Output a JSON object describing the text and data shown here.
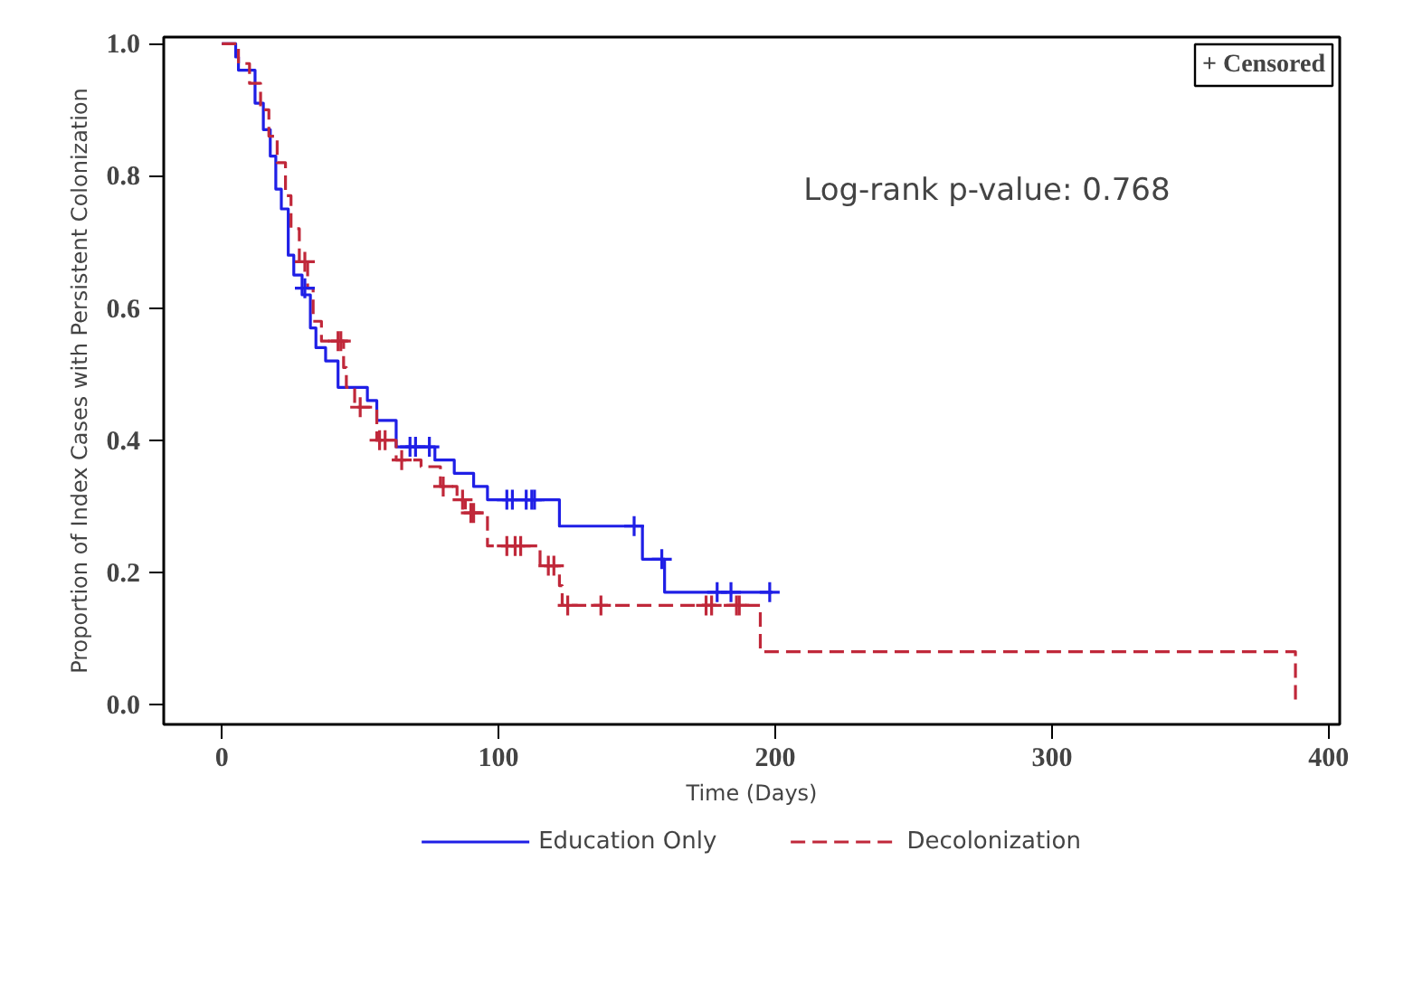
{
  "chart_data": {
    "type": "step",
    "xlabel": "Time (Days)",
    "ylabel": "Proportion of Index Cases with Persistent Colonization",
    "xlim": [
      -21,
      404
    ],
    "ylim": [
      -0.03,
      1.01
    ],
    "xticks": [
      0,
      100,
      200,
      300,
      400
    ],
    "yticks": [
      {
        "value": 0,
        "label": "0.0"
      },
      0.2,
      0.4,
      0.6,
      0.8,
      {
        "value": 1,
        "label": "1.0"
      }
    ],
    "grid": false,
    "legend": "bottom",
    "annotations": [
      "+ Censored",
      "Log-rank p-value: 0.768"
    ],
    "series": [
      {
        "name": "Education Only",
        "color": "#1f1fe6",
        "line_style": "solid",
        "x": [
          0,
          5,
          6,
          12,
          15,
          17.5,
          19.5,
          21.5,
          24,
          26,
          29,
          32,
          34,
          37.5,
          42,
          52.6,
          56,
          63,
          77,
          84,
          91,
          96,
          122,
          152,
          160,
          199
        ],
        "values": [
          1.0,
          0.98,
          0.96,
          0.91,
          0.87,
          0.83,
          0.78,
          0.75,
          0.68,
          0.65,
          0.62,
          0.57,
          0.54,
          0.52,
          0.48,
          0.46,
          0.43,
          0.39,
          0.37,
          0.35,
          0.33,
          0.31,
          0.27,
          0.22,
          0.17,
          0.17
        ]
      },
      {
        "name": "Decolonization",
        "color": "#c0283a",
        "line_style": "dashed",
        "x": [
          0,
          6,
          10,
          14,
          17,
          20,
          23,
          25,
          28,
          31,
          33,
          36,
          44,
          45,
          48,
          56,
          63,
          72,
          79,
          85,
          88,
          96,
          115,
          122,
          123,
          194.6,
          388
        ],
        "values": [
          1.0,
          0.97,
          0.94,
          0.9,
          0.86,
          0.82,
          0.77,
          0.72,
          0.67,
          0.63,
          0.58,
          0.55,
          0.51,
          0.48,
          0.45,
          0.4,
          0.37,
          0.36,
          0.33,
          0.31,
          0.29,
          0.24,
          0.21,
          0.18,
          0.15,
          0.08,
          0.0
        ]
      },
      {
        "type": "scatter",
        "marker": "cross",
        "color": "#1f1fe6",
        "x": [
          30,
          68,
          70,
          75,
          103,
          105,
          110,
          112,
          113,
          149,
          159,
          179,
          184,
          198
        ],
        "values": [
          0.63,
          0.39,
          0.39,
          0.39,
          0.31,
          0.31,
          0.31,
          0.31,
          0.31,
          0.27,
          0.22,
          0.17,
          0.17,
          0.17
        ]
      },
      {
        "type": "scatter",
        "marker": "cross",
        "color": "#c0283a",
        "x": [
          30,
          42,
          43,
          50,
          57,
          59,
          65,
          80,
          87,
          90,
          91,
          103,
          106,
          108,
          118,
          120,
          125,
          137,
          175,
          177,
          186,
          187
        ],
        "values": [
          0.67,
          0.55,
          0.55,
          0.45,
          0.4,
          0.4,
          0.37,
          0.33,
          0.31,
          0.29,
          0.29,
          0.24,
          0.24,
          0.24,
          0.21,
          0.21,
          0.15,
          0.15,
          0.15,
          0.15,
          0.15,
          0.15
        ]
      }
    ]
  }
}
